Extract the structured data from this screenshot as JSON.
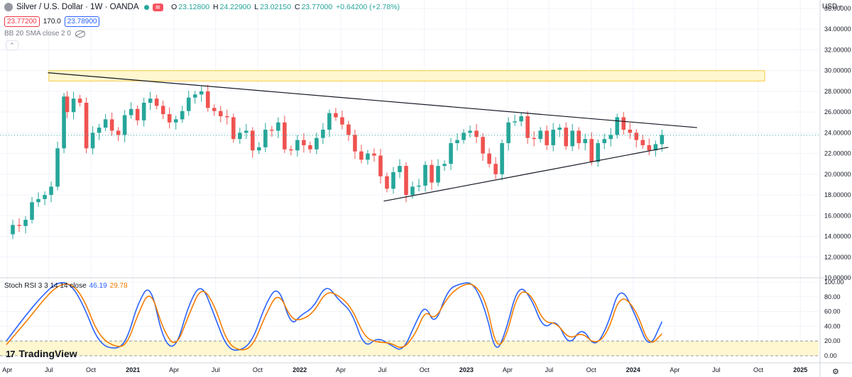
{
  "header": {
    "symbol": "Silver / U.S. Dollar · 1W · OANDA",
    "badge": "≋",
    "ohlc": {
      "o_label": "O",
      "o": "23.12800",
      "h_label": "H",
      "h": "24.22900",
      "l_label": "L",
      "l": "23.02150",
      "c_label": "C",
      "c": "23.77000",
      "change": "+0.64200 (+2.78%)"
    },
    "bid": "23.77200",
    "spread": "170.0",
    "ask": "23.78900",
    "indicator": "BB 20 SMA close 2 0",
    "currency": "USD"
  },
  "rsi_label": {
    "name": "Stoch RSI 3 3 14 14 close",
    "k": "46.19",
    "d": "29.78"
  },
  "logo_text": "TradingView",
  "colors": {
    "up": "#26a69a",
    "down": "#ef5350",
    "zone_fill": "#fff7cf",
    "zone_stroke": "#f7c948",
    "k_line": "#2962ff",
    "d_line": "#f57c00",
    "grid": "#f0f3fa",
    "price_line": "#26a69a"
  },
  "chart_data": [
    {
      "type": "candlestick",
      "title": "Silver / U.S. Dollar · 1W · OANDA",
      "ylim": [
        10,
        36
      ],
      "y_ticks": [
        "36.00000",
        "34.00000",
        "32.00000",
        "30.00000",
        "28.00000",
        "26.00000",
        "24.00000",
        "22.00000",
        "20.00000",
        "18.00000",
        "16.00000",
        "14.00000",
        "12.00000",
        "10.00000"
      ],
      "x_ticks": [
        "Apr",
        "Jul",
        "Oct",
        "2021",
        "Apr",
        "Jul",
        "Oct",
        "2022",
        "Apr",
        "Jul",
        "Oct",
        "2023",
        "Apr",
        "Jul",
        "Oct",
        "2024",
        "Apr",
        "Jul",
        "Oct",
        "2025"
      ],
      "x_tick_dates": [
        "2020-04",
        "2020-07",
        "2020-10",
        "2021-01",
        "2021-04",
        "2021-07",
        "2021-10",
        "2022-01",
        "2022-04",
        "2022-07",
        "2022-10",
        "2023-01",
        "2023-04",
        "2023-07",
        "2023-10",
        "2024-01",
        "2024-04",
        "2024-07",
        "2024-10",
        "2025-01"
      ],
      "current_price": 23.77,
      "resistance_zone": {
        "from": "2020-07",
        "to": "2024-10",
        "low": 29.0,
        "high": 30.0
      },
      "trendlines": [
        {
          "name": "upper",
          "points": [
            [
              "2020-06-29",
              29.8
            ],
            [
              "2024-05-20",
              24.5
            ]
          ]
        },
        {
          "name": "lower",
          "points": [
            [
              "2022-07-04",
              17.4
            ],
            [
              "2024-03-18",
              22.6
            ]
          ]
        }
      ],
      "closes": [
        [
          "2020-03-30",
          14.2
        ],
        [
          "2020-04-13",
          15.1
        ],
        [
          "2020-04-27",
          15.0
        ],
        [
          "2020-05-11",
          15.6
        ],
        [
          "2020-05-25",
          17.3
        ],
        [
          "2020-06-08",
          17.6
        ],
        [
          "2020-06-22",
          18.0
        ],
        [
          "2020-07-06",
          18.8
        ],
        [
          "2020-07-20",
          22.5
        ],
        [
          "2020-08-03",
          27.5
        ],
        [
          "2020-08-10",
          26.0
        ],
        [
          "2020-08-24",
          27.3
        ],
        [
          "2020-09-07",
          26.9
        ],
        [
          "2020-09-21",
          22.5
        ],
        [
          "2020-10-05",
          24.0
        ],
        [
          "2020-10-19",
          24.5
        ],
        [
          "2020-11-02",
          25.3
        ],
        [
          "2020-11-16",
          24.2
        ],
        [
          "2020-11-30",
          23.8
        ],
        [
          "2020-12-14",
          25.7
        ],
        [
          "2020-12-28",
          26.3
        ],
        [
          "2021-01-11",
          25.2
        ],
        [
          "2021-01-25",
          26.9
        ],
        [
          "2021-02-08",
          27.3
        ],
        [
          "2021-02-22",
          26.6
        ],
        [
          "2021-03-08",
          25.8
        ],
        [
          "2021-03-22",
          25.0
        ],
        [
          "2021-04-05",
          25.3
        ],
        [
          "2021-04-19",
          26.1
        ],
        [
          "2021-05-03",
          27.4
        ],
        [
          "2021-05-17",
          27.7
        ],
        [
          "2021-05-31",
          28.0
        ],
        [
          "2021-06-14",
          26.4
        ],
        [
          "2021-06-28",
          26.1
        ],
        [
          "2021-07-12",
          25.6
        ],
        [
          "2021-07-26",
          25.5
        ],
        [
          "2021-08-09",
          23.4
        ],
        [
          "2021-08-23",
          24.0
        ],
        [
          "2021-09-06",
          24.2
        ],
        [
          "2021-09-20",
          22.3
        ],
        [
          "2021-10-04",
          22.6
        ],
        [
          "2021-10-18",
          24.3
        ],
        [
          "2021-11-01",
          24.2
        ],
        [
          "2021-11-15",
          25.0
        ],
        [
          "2021-11-29",
          22.4
        ],
        [
          "2021-12-13",
          22.3
        ],
        [
          "2021-12-27",
          23.3
        ],
        [
          "2022-01-10",
          22.8
        ],
        [
          "2022-01-24",
          22.4
        ],
        [
          "2022-02-07",
          23.5
        ],
        [
          "2022-02-21",
          24.3
        ],
        [
          "2022-03-07",
          25.9
        ],
        [
          "2022-03-21",
          25.5
        ],
        [
          "2022-04-04",
          24.8
        ],
        [
          "2022-04-18",
          23.8
        ],
        [
          "2022-05-02",
          22.2
        ],
        [
          "2022-05-16",
          21.4
        ],
        [
          "2022-05-30",
          22.0
        ],
        [
          "2022-06-13",
          21.8
        ],
        [
          "2022-06-27",
          19.8
        ],
        [
          "2022-07-11",
          18.6
        ],
        [
          "2022-07-25",
          20.2
        ],
        [
          "2022-08-08",
          20.8
        ],
        [
          "2022-08-22",
          18.0
        ],
        [
          "2022-09-05",
          18.8
        ],
        [
          "2022-09-19",
          18.9
        ],
        [
          "2022-10-03",
          20.9
        ],
        [
          "2022-10-17",
          19.2
        ],
        [
          "2022-10-31",
          20.8
        ],
        [
          "2022-11-14",
          21.0
        ],
        [
          "2022-11-28",
          23.0
        ],
        [
          "2022-12-12",
          23.3
        ],
        [
          "2022-12-26",
          24.0
        ],
        [
          "2023-01-09",
          24.2
        ],
        [
          "2023-01-23",
          23.6
        ],
        [
          "2023-02-06",
          22.0
        ],
        [
          "2023-02-20",
          21.0
        ],
        [
          "2023-03-06",
          20.0
        ],
        [
          "2023-03-20",
          23.0
        ],
        [
          "2023-04-03",
          25.0
        ],
        [
          "2023-04-17",
          25.1
        ],
        [
          "2023-05-01",
          25.6
        ],
        [
          "2023-05-15",
          23.5
        ],
        [
          "2023-05-29",
          23.4
        ],
        [
          "2023-06-12",
          24.2
        ],
        [
          "2023-06-26",
          22.8
        ],
        [
          "2023-07-10",
          24.3
        ],
        [
          "2023-07-24",
          24.5
        ],
        [
          "2023-08-07",
          22.7
        ],
        [
          "2023-08-21",
          24.2
        ],
        [
          "2023-09-04",
          23.0
        ],
        [
          "2023-09-18",
          23.4
        ],
        [
          "2023-10-02",
          21.2
        ],
        [
          "2023-10-16",
          23.0
        ],
        [
          "2023-10-30",
          23.4
        ],
        [
          "2023-11-13",
          23.8
        ],
        [
          "2023-11-27",
          25.5
        ],
        [
          "2023-12-11",
          24.3
        ],
        [
          "2023-12-25",
          24.0
        ],
        [
          "2024-01-08",
          23.3
        ],
        [
          "2024-01-22",
          22.8
        ],
        [
          "2024-02-05",
          22.3
        ],
        [
          "2024-02-19",
          22.9
        ],
        [
          "2024-03-04",
          23.8
        ]
      ]
    },
    {
      "type": "line",
      "title": "Stoch RSI 3 3 14 14 close",
      "ylim": [
        0,
        100
      ],
      "y_ticks": [
        "100.00",
        "80.00",
        "60.00",
        "40.00",
        "20.00",
        "0.00"
      ],
      "band": [
        0,
        20
      ],
      "series": [
        {
          "name": "K",
          "points": [
            [
              "2020-03-30",
              20
            ],
            [
              "2020-05-11",
              55
            ],
            [
              "2020-06-22",
              85
            ],
            [
              "2020-07-20",
              100
            ],
            [
              "2020-08-17",
              98
            ],
            [
              "2020-09-14",
              70
            ],
            [
              "2020-10-19",
              15
            ],
            [
              "2020-11-30",
              8
            ],
            [
              "2020-12-21",
              25
            ],
            [
              "2021-01-11",
              70
            ],
            [
              "2021-02-08",
              100
            ],
            [
              "2021-03-08",
              20
            ],
            [
              "2021-04-05",
              8
            ],
            [
              "2021-05-03",
              70
            ],
            [
              "2021-05-31",
              100
            ],
            [
              "2021-06-28",
              55
            ],
            [
              "2021-07-26",
              10
            ],
            [
              "2021-08-23",
              6
            ],
            [
              "2021-09-20",
              20
            ],
            [
              "2021-10-18",
              70
            ],
            [
              "2021-11-15",
              97
            ],
            [
              "2021-12-13",
              40
            ],
            [
              "2022-01-03",
              55
            ],
            [
              "2022-01-31",
              65
            ],
            [
              "2022-02-28",
              98
            ],
            [
              "2022-03-28",
              75
            ],
            [
              "2022-04-25",
              60
            ],
            [
              "2022-05-23",
              10
            ],
            [
              "2022-06-20",
              25
            ],
            [
              "2022-07-18",
              15
            ],
            [
              "2022-08-15",
              5
            ],
            [
              "2022-09-12",
              45
            ],
            [
              "2022-10-03",
              70
            ],
            [
              "2022-10-24",
              40
            ],
            [
              "2022-11-21",
              90
            ],
            [
              "2022-12-19",
              98
            ],
            [
              "2023-01-16",
              100
            ],
            [
              "2023-02-13",
              60
            ],
            [
              "2023-03-06",
              2
            ],
            [
              "2023-03-27",
              30
            ],
            [
              "2023-04-24",
              97
            ],
            [
              "2023-05-22",
              80
            ],
            [
              "2023-06-19",
              35
            ],
            [
              "2023-07-17",
              50
            ],
            [
              "2023-08-14",
              12
            ],
            [
              "2023-09-11",
              40
            ],
            [
              "2023-10-09",
              10
            ],
            [
              "2023-11-06",
              40
            ],
            [
              "2023-12-04",
              98
            ],
            [
              "2024-01-08",
              52
            ],
            [
              "2024-02-05",
              8
            ],
            [
              "2024-03-04",
              46.19
            ]
          ]
        },
        {
          "name": "D",
          "points": [
            [
              "2020-03-30",
              15
            ],
            [
              "2020-05-11",
              45
            ],
            [
              "2020-06-22",
              78
            ],
            [
              "2020-07-20",
              95
            ],
            [
              "2020-08-17",
              99
            ],
            [
              "2020-09-14",
              80
            ],
            [
              "2020-10-19",
              25
            ],
            [
              "2020-11-30",
              10
            ],
            [
              "2020-12-21",
              18
            ],
            [
              "2021-01-11",
              55
            ],
            [
              "2021-02-08",
              92
            ],
            [
              "2021-03-08",
              35
            ],
            [
              "2021-04-05",
              10
            ],
            [
              "2021-05-03",
              55
            ],
            [
              "2021-05-31",
              95
            ],
            [
              "2021-06-28",
              70
            ],
            [
              "2021-07-26",
              18
            ],
            [
              "2021-08-23",
              6
            ],
            [
              "2021-09-20",
              12
            ],
            [
              "2021-10-18",
              55
            ],
            [
              "2021-11-15",
              88
            ],
            [
              "2021-12-13",
              50
            ],
            [
              "2022-01-03",
              48
            ],
            [
              "2022-01-31",
              58
            ],
            [
              "2022-02-28",
              88
            ],
            [
              "2022-03-28",
              82
            ],
            [
              "2022-04-25",
              65
            ],
            [
              "2022-05-23",
              25
            ],
            [
              "2022-06-20",
              18
            ],
            [
              "2022-07-18",
              18
            ],
            [
              "2022-08-15",
              8
            ],
            [
              "2022-09-12",
              30
            ],
            [
              "2022-10-03",
              62
            ],
            [
              "2022-10-24",
              48
            ],
            [
              "2022-11-21",
              80
            ],
            [
              "2022-12-19",
              95
            ],
            [
              "2023-01-16",
              99
            ],
            [
              "2023-02-13",
              75
            ],
            [
              "2023-03-06",
              12
            ],
            [
              "2023-03-27",
              20
            ],
            [
              "2023-04-24",
              88
            ],
            [
              "2023-05-22",
              85
            ],
            [
              "2023-06-19",
              45
            ],
            [
              "2023-07-17",
              45
            ],
            [
              "2023-08-14",
              22
            ],
            [
              "2023-09-11",
              32
            ],
            [
              "2023-10-09",
              15
            ],
            [
              "2023-11-06",
              30
            ],
            [
              "2023-12-04",
              85
            ],
            [
              "2024-01-08",
              62
            ],
            [
              "2024-02-05",
              12
            ],
            [
              "2024-03-04",
              29.78
            ]
          ]
        }
      ]
    }
  ]
}
